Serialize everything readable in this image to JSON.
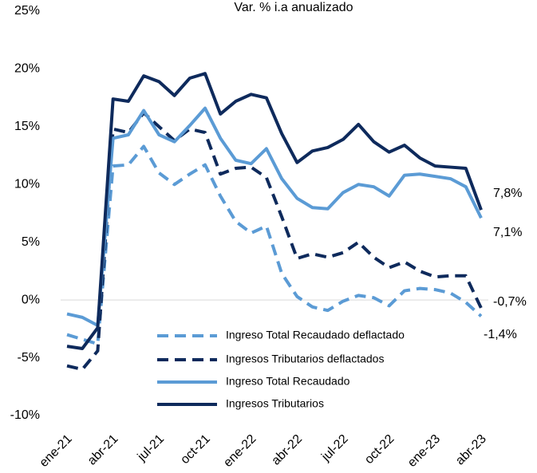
{
  "chart_data": {
    "type": "line",
    "title": "Var. % i.a anualizado",
    "categories": [
      "ene-21",
      null,
      null,
      "abr-21",
      null,
      null,
      "jul-21",
      null,
      null,
      "oct-21",
      null,
      null,
      "ene-22",
      null,
      null,
      "abr-22",
      null,
      null,
      "jul-22",
      null,
      null,
      "oct-22",
      null,
      null,
      "ene-23",
      null,
      null,
      "abr-23"
    ],
    "ylim": [
      -10,
      25
    ],
    "yticks": [
      {
        "value": -10,
        "label": "-10%"
      },
      {
        "value": -5,
        "label": "-5%"
      },
      {
        "value": 0,
        "label": "0%"
      },
      {
        "value": 5,
        "label": "5%"
      },
      {
        "value": 10,
        "label": "10%"
      },
      {
        "value": 15,
        "label": "15%"
      },
      {
        "value": 20,
        "label": "20%"
      },
      {
        "value": 25,
        "label": "25%"
      }
    ],
    "series": [
      {
        "name": "Ingreso Total Recaudado deflactado",
        "color": "#5b9bd5",
        "dash": true,
        "values": [
          -3.0,
          -3.4,
          -3.8,
          11.6,
          11.7,
          13.3,
          11.0,
          10.0,
          10.9,
          11.7,
          9.0,
          6.8,
          5.8,
          6.4,
          2.3,
          0.3,
          -0.6,
          -0.9,
          -0.1,
          0.4,
          0.2,
          -0.5,
          0.8,
          1.0,
          0.9,
          0.6,
          -0.2,
          -1.4
        ],
        "value_labels": [
          null,
          null,
          null,
          null,
          null,
          null,
          null,
          null,
          null,
          null,
          null,
          null,
          null,
          null,
          null,
          null,
          null,
          null,
          null,
          null,
          null,
          null,
          null,
          null,
          null,
          null,
          null,
          "-1,4%"
        ]
      },
      {
        "name": "Ingresos Tributarios deflactados",
        "color": "#0e2a5c",
        "dash": true,
        "values": [
          -5.7,
          -6.0,
          -4.4,
          14.8,
          14.5,
          16.2,
          15.0,
          13.8,
          14.8,
          14.5,
          10.9,
          11.4,
          11.5,
          10.6,
          7.2,
          3.6,
          4.0,
          3.7,
          4.1,
          5.0,
          3.7,
          2.8,
          3.3,
          2.5,
          2.0,
          2.1,
          2.1,
          -0.7
        ],
        "value_labels": [
          null,
          null,
          null,
          null,
          null,
          null,
          null,
          null,
          null,
          null,
          null,
          null,
          null,
          null,
          null,
          null,
          null,
          null,
          null,
          null,
          null,
          null,
          null,
          null,
          null,
          null,
          null,
          "-0,7%"
        ]
      },
      {
        "name": "Ingreso Total Recaudado",
        "color": "#5b9bd5",
        "dash": false,
        "values": [
          -1.2,
          -1.5,
          -2.2,
          14.0,
          14.3,
          16.4,
          14.3,
          13.7,
          15.1,
          16.6,
          14.0,
          12.1,
          11.8,
          13.1,
          10.5,
          8.8,
          8.0,
          7.9,
          9.3,
          10.0,
          9.8,
          9.0,
          10.8,
          10.9,
          10.7,
          10.5,
          9.8,
          7.1
        ],
        "value_labels": [
          null,
          null,
          null,
          null,
          null,
          null,
          null,
          null,
          null,
          null,
          null,
          null,
          null,
          null,
          null,
          null,
          null,
          null,
          null,
          null,
          null,
          null,
          null,
          null,
          null,
          null,
          null,
          "7,1%"
        ]
      },
      {
        "name": "Ingresos Tributarios",
        "color": "#0e2a5c",
        "dash": false,
        "values": [
          -4.0,
          -4.2,
          -2.4,
          17.4,
          17.2,
          19.4,
          18.9,
          17.7,
          19.2,
          19.6,
          16.1,
          17.2,
          17.8,
          17.5,
          14.4,
          11.9,
          12.9,
          13.2,
          13.9,
          15.2,
          13.7,
          12.8,
          13.4,
          12.3,
          11.6,
          11.5,
          11.4,
          7.8
        ],
        "value_labels": [
          null,
          null,
          null,
          null,
          null,
          null,
          null,
          null,
          null,
          null,
          null,
          null,
          null,
          null,
          null,
          null,
          null,
          null,
          null,
          null,
          null,
          null,
          null,
          null,
          null,
          null,
          null,
          "7,8%"
        ]
      }
    ]
  }
}
